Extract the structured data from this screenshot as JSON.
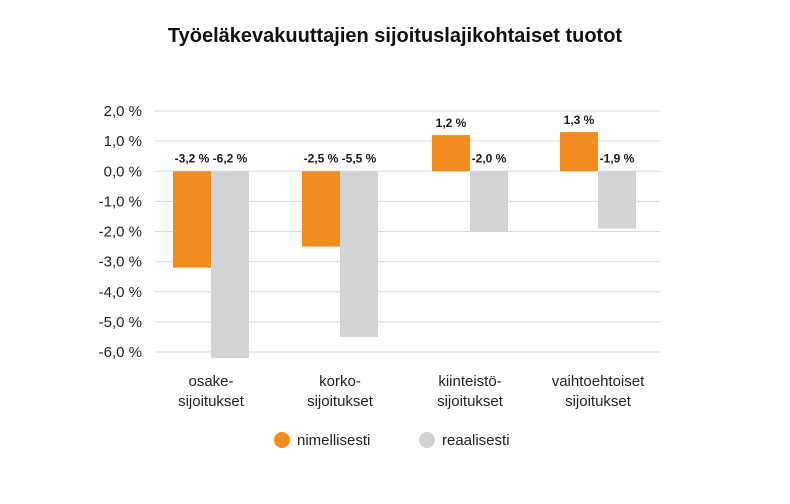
{
  "chart_data": {
    "type": "bar",
    "title": "Työeläkevakuuttajien sijoituslajikohtaiset tuotot",
    "xlabel": "",
    "ylabel": "",
    "categories": [
      [
        "osake-",
        "sijoitukset"
      ],
      [
        "korko-",
        "sijoitukset"
      ],
      [
        "kiinteistö-",
        "sijoitukset"
      ],
      [
        "vaihtoehtoiset",
        "sijoitukset"
      ]
    ],
    "series": [
      {
        "name": "nimellisesti",
        "color": "#f28c1e",
        "values": [
          -3.2,
          -2.5,
          1.2,
          1.3
        ],
        "labels": [
          "-3,2 %",
          "-2,5 %",
          "1,2 %",
          "1,3 %"
        ]
      },
      {
        "name": "reaalisesti",
        "color": "#d3d3d6",
        "values": [
          -6.2,
          -5.5,
          -2.0,
          -1.9
        ],
        "labels": [
          "-6,2 %",
          "-5,5 %",
          "-2,0 %",
          "-1,9 %"
        ]
      }
    ],
    "ylim": [
      -6.0,
      2.0
    ],
    "yticks": [
      2.0,
      1.0,
      0.0,
      -1.0,
      -2.0,
      -3.0,
      -4.0,
      -5.0,
      -6.0
    ],
    "ytick_labels": [
      "2,0 %",
      "1,0 %",
      "0,0 %",
      "-1,0 %",
      "-2,0 %",
      "-3,0 %",
      "-4,0 %",
      "-5,0 %",
      "-6,0 %"
    ],
    "grid": true,
    "legend_position": "bottom-center"
  }
}
